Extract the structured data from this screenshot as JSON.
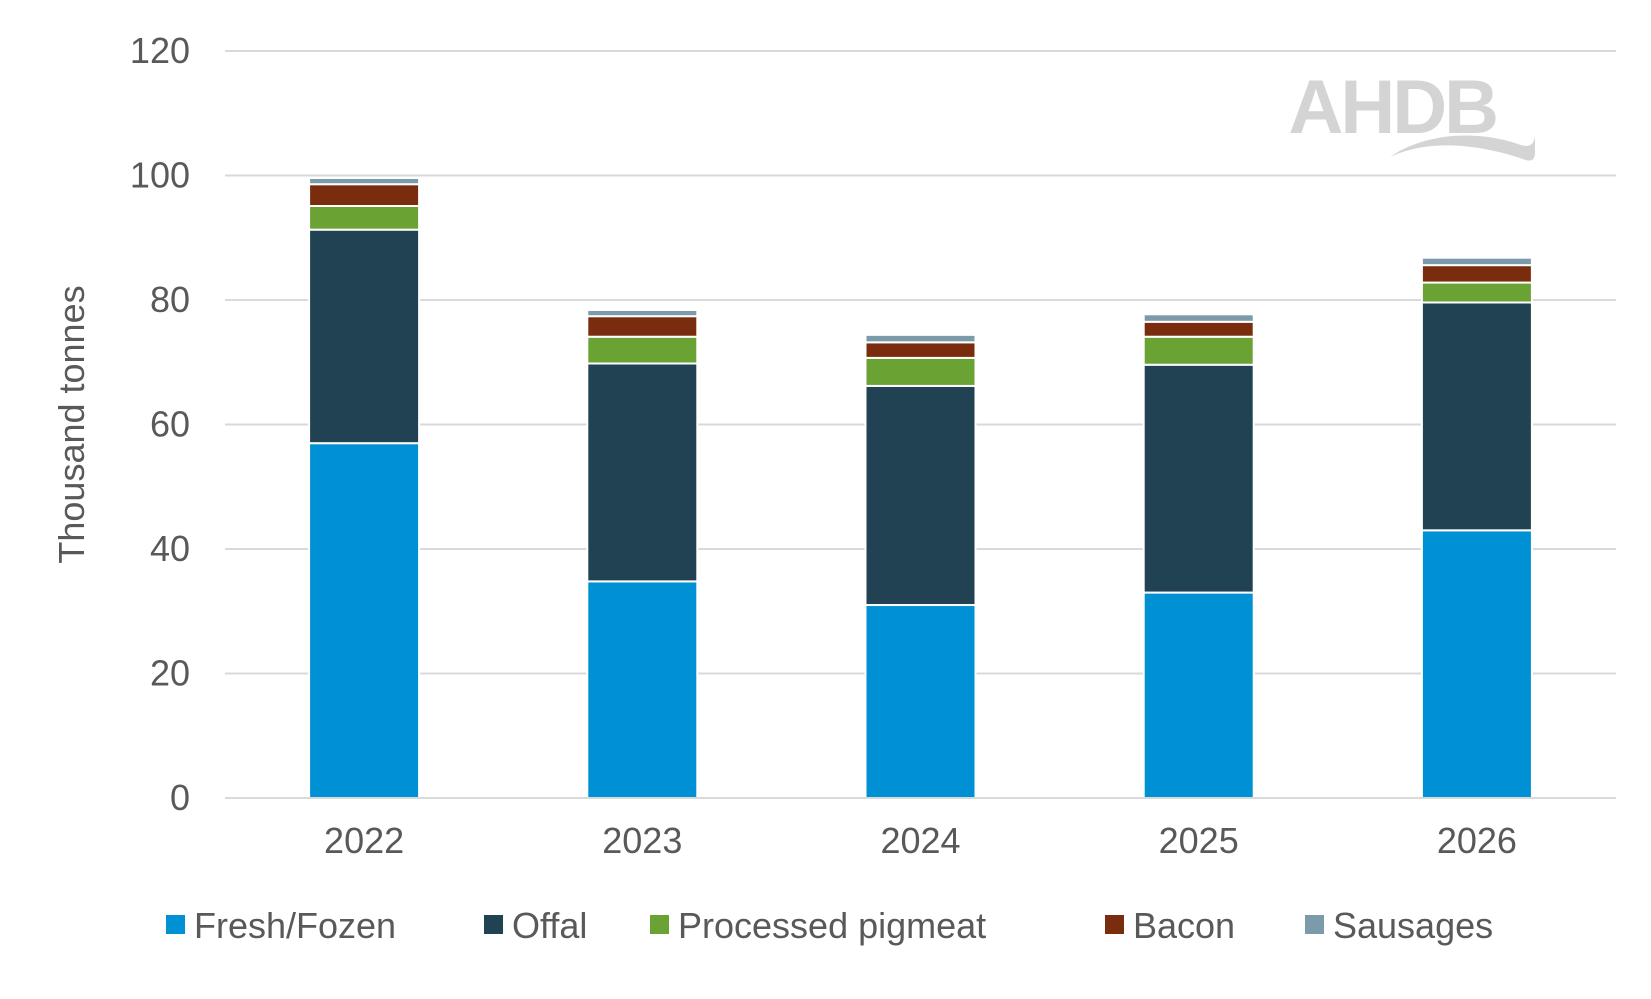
{
  "chart_data": {
    "type": "bar",
    "stacked": true,
    "title": "",
    "xlabel": "",
    "ylabel": "Thousand tonnes",
    "ylim": [
      0,
      120
    ],
    "yticks": [
      0,
      20,
      40,
      60,
      80,
      100,
      120
    ],
    "grid": true,
    "legend_position": "bottom",
    "categories": [
      "2022",
      "2023",
      "2024",
      "2025",
      "2026"
    ],
    "series": [
      {
        "name": "Fresh/Fozen",
        "color": "#0090D4",
        "values": [
          57,
          34.8,
          31,
          33,
          43
        ]
      },
      {
        "name": "Offal",
        "color": "#214252",
        "values": [
          34.3,
          35,
          35.2,
          36.6,
          36.6
        ]
      },
      {
        "name": "Processed pigmeat",
        "color": "#6AA333",
        "values": [
          3.8,
          4.3,
          4.5,
          4.5,
          3.2
        ]
      },
      {
        "name": "Bacon",
        "color": "#7A2C0E",
        "values": [
          3.5,
          3.3,
          2.5,
          2.4,
          2.8
        ]
      },
      {
        "name": "Sausages",
        "color": "#7B9AAA",
        "values": [
          1.0,
          1.0,
          1.2,
          1.2,
          1.2
        ]
      }
    ]
  },
  "logo_text": "AHDB"
}
